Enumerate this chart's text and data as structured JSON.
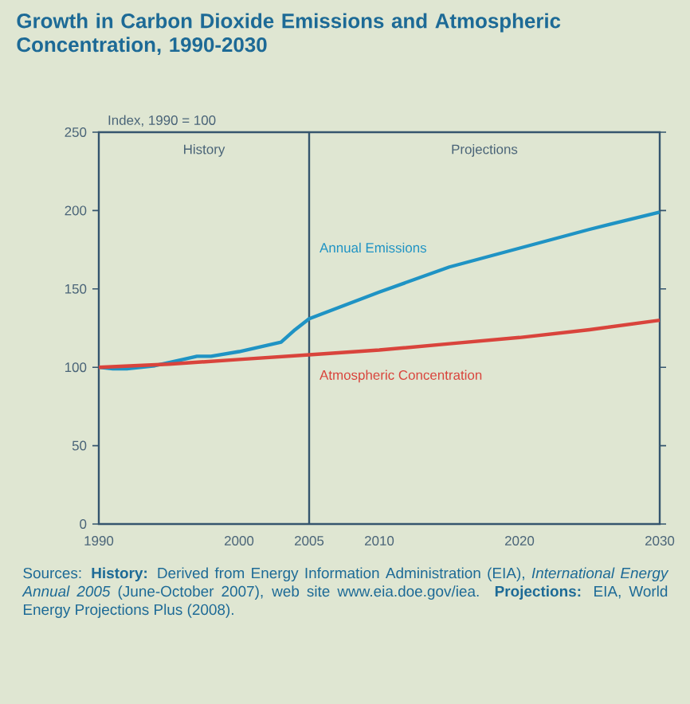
{
  "chart_data": {
    "type": "line",
    "title": "Growth in Carbon Dioxide Emissions and Atmospheric Concentration, 1990-2030",
    "ylabel": "Index, 1990 = 100",
    "series": [
      {
        "name": "Annual Emissions",
        "color": "#1f93c4",
        "x": [
          1990,
          1991,
          1992,
          1994,
          1996,
          1997,
          1998,
          2000,
          2002,
          2003,
          2004,
          2005,
          2010,
          2015,
          2020,
          2025,
          2030
        ],
        "values": [
          100,
          99,
          99,
          101,
          105,
          107,
          107,
          110,
          114,
          116,
          124,
          131,
          148,
          164,
          176,
          188,
          199
        ]
      },
      {
        "name": "Atmospheric Concentration",
        "color": "#d9443c",
        "x": [
          1990,
          1995,
          2000,
          2005,
          2010,
          2015,
          2020,
          2025,
          2030
        ],
        "values": [
          100,
          102,
          105,
          108,
          111,
          115,
          119,
          124,
          130
        ]
      }
    ],
    "xlim": [
      1990,
      2030
    ],
    "xticks": [
      1990,
      2000,
      2005,
      2010,
      2020,
      2030
    ],
    "ylim": [
      0,
      250
    ],
    "yticks": [
      0,
      50,
      100,
      150,
      200,
      250
    ],
    "ref_lines": [
      {
        "axis": "x",
        "value": 2005,
        "color": "#35556e"
      }
    ],
    "grid": false,
    "legend": false,
    "marker": "none",
    "line_style": "solid",
    "annotations": [
      "History",
      "Projections",
      "Sources: **History:** Derived from Energy Information Administration (EIA), *International Energy Annual 2005* (June-October 2007), web site www.eia.doe.gov/iea. **Projections:** EIA, World Energy Projections Plus (2008)."
    ]
  }
}
